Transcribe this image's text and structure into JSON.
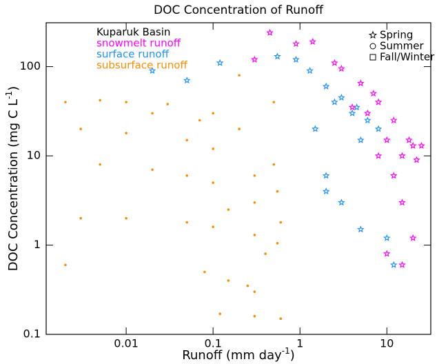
{
  "chart_data": {
    "type": "scatter",
    "title": "DOC Concentration of Runoff",
    "xlabel": [
      "Runoff (mm day",
      "-1",
      ")"
    ],
    "ylabel": [
      "DOC Concentration (mg C L",
      "-1",
      ")"
    ],
    "log_x": true,
    "log_y": true,
    "xlim": [
      0.0012,
      32
    ],
    "ylim": [
      0.1,
      310
    ],
    "xticks": [
      0.01,
      0.1,
      1,
      10
    ],
    "yticks": [
      0.1,
      1,
      10,
      100
    ],
    "legend_title": "Kuparuk Basin",
    "marker_legend": [
      "Spring",
      "Summer",
      "Fall/Winter"
    ],
    "series": [
      {
        "name": "snowmelt runoff",
        "color": "#ff00ff",
        "marker": "star",
        "x": [
          0.45,
          1.4,
          2.5,
          5,
          8,
          12,
          20,
          6,
          10,
          15,
          22,
          4,
          8,
          12,
          15,
          20,
          10,
          15,
          0.9,
          0.3,
          3,
          7,
          18,
          25
        ],
        "values": [
          240,
          190,
          110,
          65,
          40,
          25,
          13,
          30,
          15,
          10,
          9,
          35,
          10,
          6,
          3,
          1.2,
          0.8,
          0.6,
          180,
          120,
          95,
          50,
          15,
          13
        ]
      },
      {
        "name": "surface runoff",
        "color": "#1e90ff",
        "marker": "star",
        "x": [
          0.55,
          0.9,
          1.3,
          2,
          3,
          4,
          6,
          5,
          8,
          2,
          5,
          10,
          12,
          0.05,
          0.02,
          0.12,
          1.5,
          3,
          2,
          2.5,
          4.5
        ],
        "values": [
          130,
          120,
          90,
          60,
          45,
          30,
          25,
          15,
          20,
          4,
          1.5,
          1.2,
          0.6,
          70,
          90,
          110,
          20,
          3,
          6,
          40,
          35
        ]
      },
      {
        "name": "subsurface runoff",
        "color": "#ff8c00",
        "marker": "dot",
        "x": [
          0.002,
          0.005,
          0.01,
          0.03,
          0.1,
          0.2,
          0.5,
          0.003,
          0.01,
          0.05,
          0.1,
          0.3,
          0.55,
          0.005,
          0.02,
          0.05,
          0.1,
          0.3,
          0.6,
          0.003,
          0.01,
          0.05,
          0.1,
          0.3,
          0.55,
          0.08,
          0.15,
          0.25,
          0.3,
          0.12,
          0.3,
          0.6,
          0.002,
          0.2,
          0.5,
          0.15,
          0.4,
          0.07,
          0.02
        ],
        "values": [
          40,
          42,
          40,
          38,
          30,
          20,
          8,
          20,
          18,
          15,
          12,
          6,
          4,
          8,
          7,
          6,
          5,
          3,
          1.8,
          2,
          2,
          1.8,
          1.6,
          1.3,
          1.05,
          0.5,
          0.4,
          0.35,
          0.3,
          0.17,
          0.16,
          0.15,
          0.6,
          80,
          40,
          2.5,
          0.8,
          25,
          30
        ]
      }
    ]
  }
}
